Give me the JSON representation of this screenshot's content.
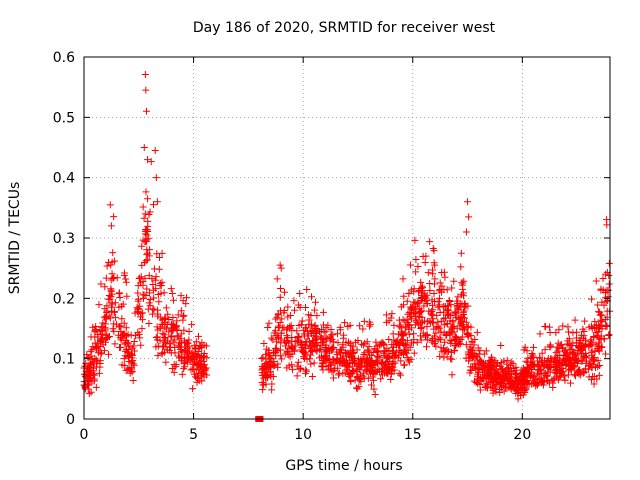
{
  "chart_data": {
    "type": "scatter",
    "title": "Day 186 of 2020, SRMTID for receiver west",
    "xlabel": "GPS time / hours",
    "ylabel": "SRMTID / TECUs",
    "xlim": [
      0,
      24
    ],
    "ylim": [
      0,
      0.6
    ],
    "xticks": [
      0,
      5,
      10,
      15,
      20
    ],
    "yticks": [
      0,
      0.1,
      0.2,
      0.3,
      0.4,
      0.5,
      0.6
    ],
    "grid": true,
    "marker": "+",
    "color": "#ff0000",
    "series": [
      {
        "name": "SRMTID",
        "segments": [
          {
            "x_start": 0.0,
            "x_end": 5.6,
            "points": 560,
            "profile": [
              [
                0.0,
                0.06
              ],
              [
                0.5,
                0.1
              ],
              [
                1.0,
                0.15
              ],
              [
                1.3,
                0.2
              ],
              [
                1.7,
                0.15
              ],
              [
                2.2,
                0.1
              ],
              [
                2.7,
                0.22
              ],
              [
                2.9,
                0.3
              ],
              [
                3.2,
                0.22
              ],
              [
                3.6,
                0.15
              ],
              [
                4.2,
                0.13
              ],
              [
                5.0,
                0.1
              ],
              [
                5.6,
                0.09
              ]
            ],
            "spikes": [
              [
                1.2,
                0.355
              ],
              [
                1.25,
                0.32
              ],
              [
                2.8,
                0.571
              ],
              [
                2.82,
                0.545
              ],
              [
                2.85,
                0.51
              ],
              [
                2.75,
                0.45
              ],
              [
                2.9,
                0.43
              ],
              [
                3.25,
                0.445
              ],
              [
                3.3,
                0.4
              ],
              [
                3.35,
                0.36
              ],
              [
                2.8,
                0.34
              ]
            ]
          },
          {
            "x_start": 7.95,
            "x_end": 8.05,
            "points": 3,
            "profile": [
              [
                7.95,
                0.0
              ],
              [
                8.05,
                0.0
              ]
            ],
            "spikes": []
          },
          {
            "x_start": 8.1,
            "x_end": 24.0,
            "points": 1700,
            "profile": [
              [
                8.1,
                0.07
              ],
              [
                8.6,
                0.1
              ],
              [
                9.0,
                0.16
              ],
              [
                9.5,
                0.12
              ],
              [
                10.5,
                0.13
              ],
              [
                11.0,
                0.11
              ],
              [
                12.0,
                0.09
              ],
              [
                13.0,
                0.09
              ],
              [
                14.0,
                0.1
              ],
              [
                15.0,
                0.16
              ],
              [
                15.5,
                0.19
              ],
              [
                16.0,
                0.17
              ],
              [
                16.8,
                0.13
              ],
              [
                17.3,
                0.17
              ],
              [
                17.6,
                0.12
              ],
              [
                18.0,
                0.08
              ],
              [
                19.0,
                0.07
              ],
              [
                19.8,
                0.06
              ],
              [
                20.5,
                0.08
              ],
              [
                21.5,
                0.09
              ],
              [
                22.5,
                0.1
              ],
              [
                23.3,
                0.12
              ],
              [
                23.7,
                0.17
              ],
              [
                24.0,
                0.2
              ]
            ],
            "spikes": [
              [
                8.95,
                0.255
              ],
              [
                9.0,
                0.25
              ],
              [
                17.5,
                0.36
              ],
              [
                17.55,
                0.335
              ],
              [
                17.45,
                0.31
              ],
              [
                15.6,
                0.27
              ],
              [
                16.0,
                0.255
              ],
              [
                23.8,
                0.24
              ]
            ]
          }
        ]
      }
    ]
  }
}
